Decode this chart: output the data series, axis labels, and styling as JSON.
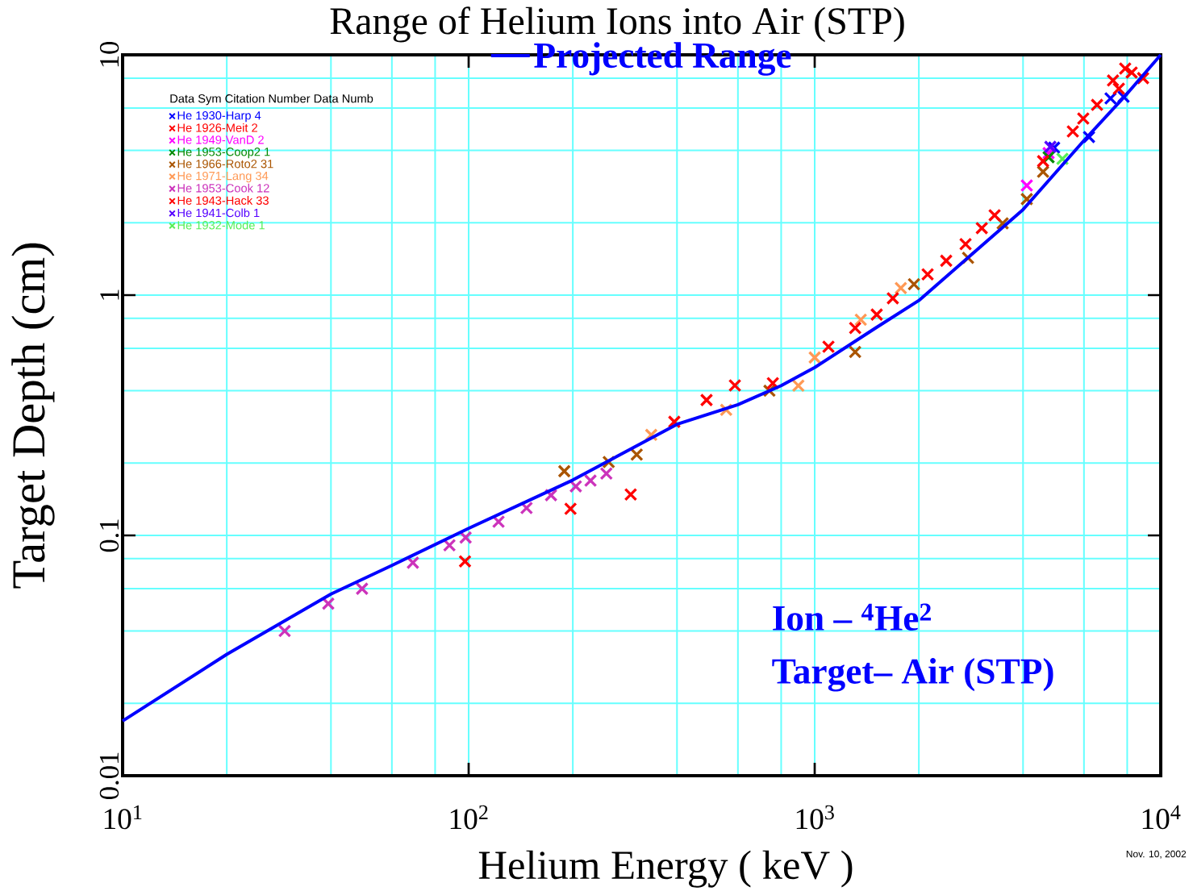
{
  "chart_data": {
    "type": "scatter",
    "title": "Range of Helium Ions into Air (STP)",
    "xlabel": "Helium  Energy ( keV )",
    "ylabel": "Target Depth (cm)",
    "legend_title": "Data Sym  Citation Number  Data Numb",
    "annotations": [
      "Ion  –  $^{4}$He$^{2}$",
      "Target– Air (STP)",
      "Nov. 10, 2002"
    ],
    "log": "xy",
    "grid": true,
    "legend": "top",
    "marker": "cross",
    "xlim": [
      10,
      10000
    ],
    "ylim": [
      0.01,
      10
    ],
    "xticks": [
      {
        "value": 10,
        "label": "10$^{1}$"
      },
      {
        "value": 100,
        "label": "10$^{2}$"
      },
      {
        "value": 1000,
        "label": "10$^{3}$"
      },
      {
        "value": 10000,
        "label": "10$^{4}$"
      }
    ],
    "yticks": [
      0.01,
      0.1,
      1,
      10
    ],
    "series": [
      {
        "name": "Projected Range",
        "type": "line",
        "marker": "none",
        "line_style": "solid",
        "color": "#0000ff",
        "x": [
          10,
          20,
          40,
          60,
          100,
          200,
          400,
          600,
          800,
          1000,
          1500,
          2000,
          3000,
          4000,
          6000,
          8000,
          10000
        ],
        "values": [
          0.0169,
          0.032,
          0.057,
          0.075,
          0.107,
          0.17,
          0.29,
          0.35,
          0.42,
          0.5,
          0.73,
          0.95,
          1.58,
          2.27,
          4.4,
          6.9,
          10
        ]
      },
      {
        "name": "He 1930-Harp 4",
        "color": "#0000ff",
        "x": [
          7161,
          7810,
          6207,
          4920
        ],
        "values": [
          6.59,
          6.69,
          4.55,
          4.11
        ]
      },
      {
        "name": "He 1926-Meit 2",
        "color": "#ff0000",
        "x": [
          7894,
          7278
        ],
        "values": [
          8.77,
          7.82
        ]
      },
      {
        "name": "He 1949-VanD 2",
        "color": "#ff00ff",
        "x": [
          4102,
          4742
        ],
        "values": [
          2.86,
          3.9
        ]
      },
      {
        "name": "He 1953-Coop2 1",
        "color": "#008800",
        "x": [
          4742
        ],
        "values": [
          3.75
        ]
      },
      {
        "name": "He 1966-Roto2 31",
        "color": "#aa5500",
        "x": [
          189,
          254,
          306,
          740,
          1309,
          1936,
          2775,
          3493,
          4102,
          4571
        ],
        "values": [
          0.185,
          0.202,
          0.217,
          0.4,
          0.58,
          1.11,
          1.43,
          1.99,
          2.51,
          3.26
        ]
      },
      {
        "name": "He 1971-Lang 34",
        "color": "#ff9955",
        "x": [
          337,
          555,
          897,
          1000,
          1359,
          1774
        ],
        "values": [
          0.262,
          0.333,
          0.42,
          0.55,
          0.79,
          1.07
        ]
      },
      {
        "name": "He 1953-Cook 12",
        "color": "#cc33bb",
        "x": [
          29.4,
          39.3,
          49.2,
          69,
          88,
          98,
          122,
          147,
          173,
          204,
          225,
          250
        ],
        "values": [
          0.04,
          0.052,
          0.06,
          0.077,
          0.091,
          0.098,
          0.114,
          0.13,
          0.147,
          0.16,
          0.169,
          0.181
        ]
      },
      {
        "name": "He 1943-Hack 33",
        "color": "#ff0000",
        "x": [
          97.6,
          197,
          294,
          393,
          487,
          588,
          757,
          1096,
          1309,
          1511,
          1682,
          2120,
          2399,
          2729,
          3040,
          3311,
          4571,
          5572,
          5972,
          6546,
          7568,
          8241,
          8892
        ],
        "values": [
          0.078,
          0.129,
          0.148,
          0.297,
          0.366,
          0.421,
          0.43,
          0.61,
          0.73,
          0.83,
          0.97,
          1.22,
          1.39,
          1.63,
          1.9,
          2.15,
          3.61,
          4.8,
          5.43,
          6.19,
          7.23,
          8.44,
          8.0
        ]
      },
      {
        "name": "He 1941-Colb 1",
        "color": "#5500ff",
        "x": [
          4798
        ],
        "values": [
          4.14
        ]
      },
      {
        "name": "He 1932-Mode 1",
        "color": "#55ee55",
        "x": [
          5200
        ],
        "values": [
          3.69
        ]
      }
    ]
  }
}
